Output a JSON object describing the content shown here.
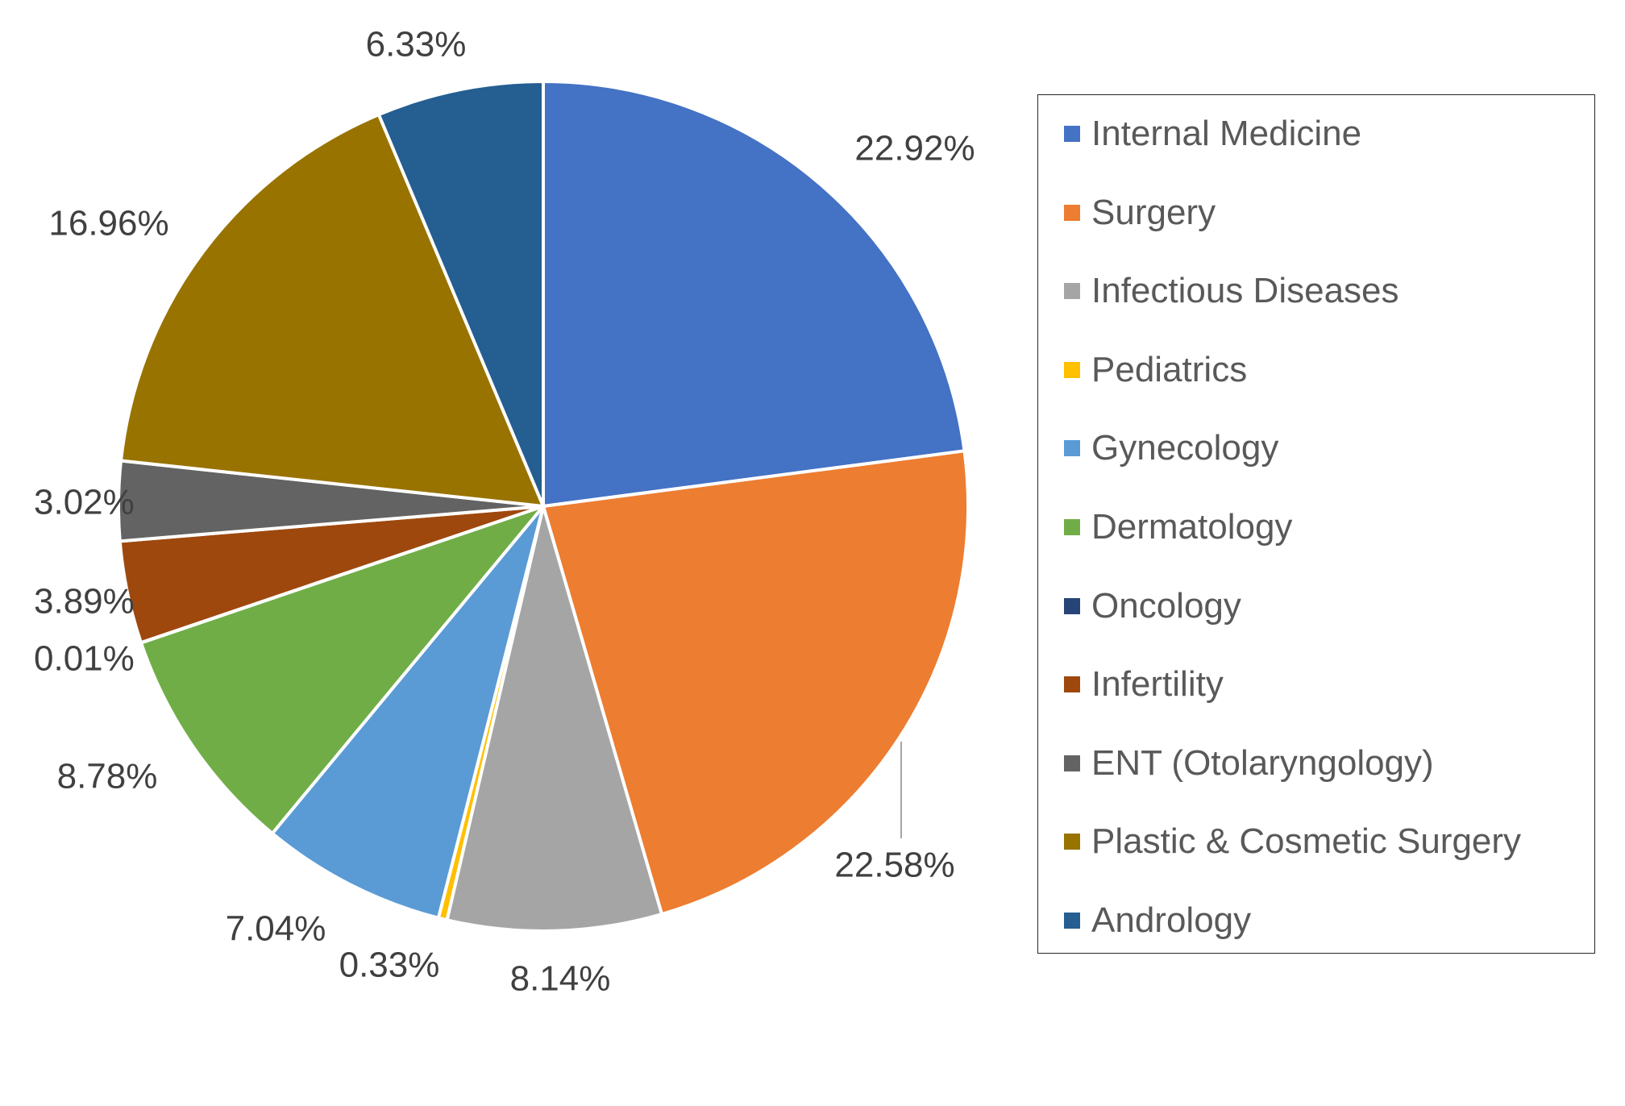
{
  "chart_data": {
    "type": "pie",
    "title": "",
    "categories": [
      "Internal Medicine",
      "Surgery",
      "Infectious Diseases",
      "Pediatrics",
      "Gynecology",
      "Dermatology",
      "Oncology",
      "Infertility",
      "ENT (Otolaryngology)",
      "Plastic & Cosmetic Surgery",
      "Andrology"
    ],
    "values": [
      22.92,
      22.58,
      8.14,
      0.33,
      7.04,
      8.78,
      0.01,
      3.89,
      3.02,
      16.96,
      6.33
    ],
    "labels": [
      "22.92%",
      "22.58%",
      "8.14%",
      "0.33%",
      "7.04%",
      "8.78%",
      "0.01%",
      "3.89%",
      "3.02%",
      "16.96%",
      "6.33%"
    ],
    "colors": [
      "#4472C4",
      "#ED7D31",
      "#A5A5A5",
      "#FFC000",
      "#5B9BD5",
      "#70AD47",
      "#264478",
      "#9E480E",
      "#636363",
      "#997300",
      "#255E91"
    ],
    "start_angle_deg": 0,
    "direction": "clockwise",
    "legend_position": "right"
  }
}
